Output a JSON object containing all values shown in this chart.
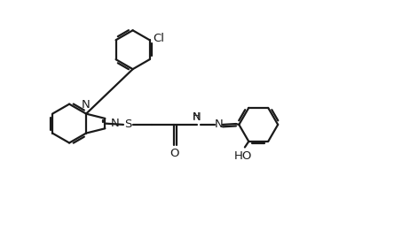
{
  "background_color": "#ffffff",
  "line_color": "#1a1a1a",
  "line_width": 1.6,
  "font_size": 9.5,
  "fig_width": 4.44,
  "fig_height": 2.77,
  "dpi": 100,
  "xlim": [
    0,
    10
  ],
  "ylim": [
    0,
    6.25
  ]
}
